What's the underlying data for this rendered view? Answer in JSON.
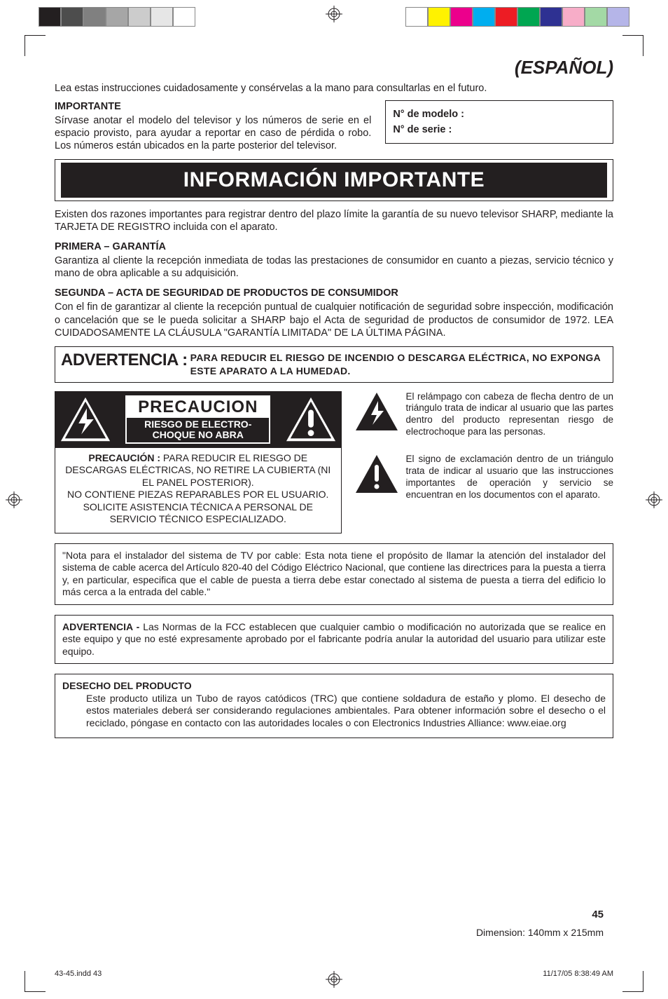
{
  "colorbars": {
    "left": [
      "#231f20",
      "#4d4d4d",
      "#808080",
      "#a6a6a6",
      "#cccccc",
      "#e6e6e6",
      "#ffffff"
    ],
    "right": [
      "#ffffff",
      "#fff200",
      "#ec008c",
      "#00aeef",
      "#ed1c24",
      "#00a651",
      "#2e3192",
      "#f7adc8",
      "#a3d9a5",
      "#b5b5e8"
    ]
  },
  "colors": {
    "text": "#231f20",
    "background": "#ffffff",
    "border": "#231f20",
    "bar_bg": "#231f20",
    "bar_fg": "#ffffff"
  },
  "header": {
    "language": "(ESPAÑOL)"
  },
  "intro": "Lea estas instrucciones cuidadosamente y consérvelas a la mano para consultarlas en el futuro.",
  "important": {
    "head": "IMPORTANTE",
    "text": "Sírvase anotar el modelo del televisor y los números de serie en el espacio provisto, para ayudar a reportar en caso de pérdida o robo. Los números están ubicados en la parte posterior del televisor."
  },
  "model_box": {
    "model_label": "N° de modelo :",
    "serial_label": "N° de serie :"
  },
  "info": {
    "title": "INFORMACIÓN IMPORTANTE",
    "lead": "Existen dos razones importantes para registrar dentro del plazo límite la garantía de su nuevo televisor SHARP, mediante la TARJETA DE REGISTRO incluida con el aparato.",
    "first_head": "PRIMERA – GARANTÍA",
    "first_text": "Garantiza al cliente la recepción inmediata de todas las prestaciones de consumidor en cuanto a piezas, servicio técnico y mano de obra aplicable a su adquisición.",
    "second_head": "SEGUNDA – ACTA DE SEGURIDAD DE PRODUCTOS DE CONSUMIDOR",
    "second_text": "Con el fin de garantizar al cliente la recepción puntual de cualquier notificación de seguridad sobre inspección, modificación o cancelación que se le pueda solicitar a SHARP bajo el Acta de seguridad de productos de consumidor de 1972. LEA CUIDADOSAMENTE LA CLÁUSULA \"GARANTÍA LIMITADA\" DE LA ÚLTIMA PÁGINA."
  },
  "warning_bar": {
    "lead": "ADVERTENCIA :",
    "text": "PARA REDUCIR EL RIESGO DE INCENDIO O DESCARGA ELÉCTRICA, NO EXPONGA ESTE APARATO A LA HUMEDAD."
  },
  "caution_box": {
    "top_label": "PRECAUCION",
    "risk_line1": "RIESGO DE ELECTRO-",
    "risk_line2": "CHOQUE NO ABRA",
    "bottom_lead": "PRECAUCIÓN :",
    "bottom_text": " PARA REDUCIR EL RIESGO DE DESCARGAS ELÉCTRICAS, NO RETIRE LA CUBIERTA (NI EL PANEL POSTERIOR).\nNO CONTIENE PIEZAS REPARABLES POR EL USUARIO.\nSOLICITE ASISTENCIA TÉCNICA A PERSONAL DE SERVICIO TÉCNICO ESPECIALIZADO."
  },
  "icon_paras": {
    "bolt": "El relámpago con cabeza de flecha dentro de un triángulo trata de indicar al usuario que las partes dentro del producto representan riesgo de electrochoque para las personas.",
    "excl": "El signo de exclamación dentro de un triángulo trata de indicar al usuario que las instrucciones importantes de operación y servicio se encuentran en los documentos con el aparato."
  },
  "installer_note": "\"Nota para el instalador del sistema de TV por cable: Esta nota tiene el propósito de llamar la atención del instalador del sistema de cable acerca del Artículo 820-40 del Código Eléctrico Nacional, que contiene las directrices para la puesta a tierra  y, en particular, especifica que el cable de puesta a tierra debe estar conectado al sistema de puesta a tierra del edificio lo más cerca a la entrada del cable.\"",
  "fcc_note_lead": "ADVERTENCIA - ",
  "fcc_note_text": "Las Normas de la FCC establecen que cualquier cambio o modificación no autorizada que se realice en este equipo y que no esté expresamente aprobado por el fabricante podría anular la autoridad del usuario para utilizar este equipo.",
  "disposal": {
    "head": "DESECHO DEL PRODUCTO",
    "text": "Este producto utiliza un Tubo de rayos catódicos (TRC) que contiene soldadura de estaño y plomo. El desecho de estos materiales deberá ser considerando regulaciones ambientales. Para obtener información sobre el desecho o el reciclado, póngase en contacto con las autoridades locales o con Electronics Industries Alliance: www.eiae.org"
  },
  "page_number": "45",
  "dimension_text": "Dimension: 140mm x 215mm",
  "footer": {
    "left": "43-45.indd   43",
    "right": "11/17/05   8:38:49 AM"
  },
  "typography": {
    "body_fontsize_pt": 10,
    "heading_lang_fontsize_pt": 18,
    "info_title_fontsize_pt": 22,
    "warning_lead_fontsize_pt": 18,
    "font_family": "Helvetica/Arial"
  }
}
